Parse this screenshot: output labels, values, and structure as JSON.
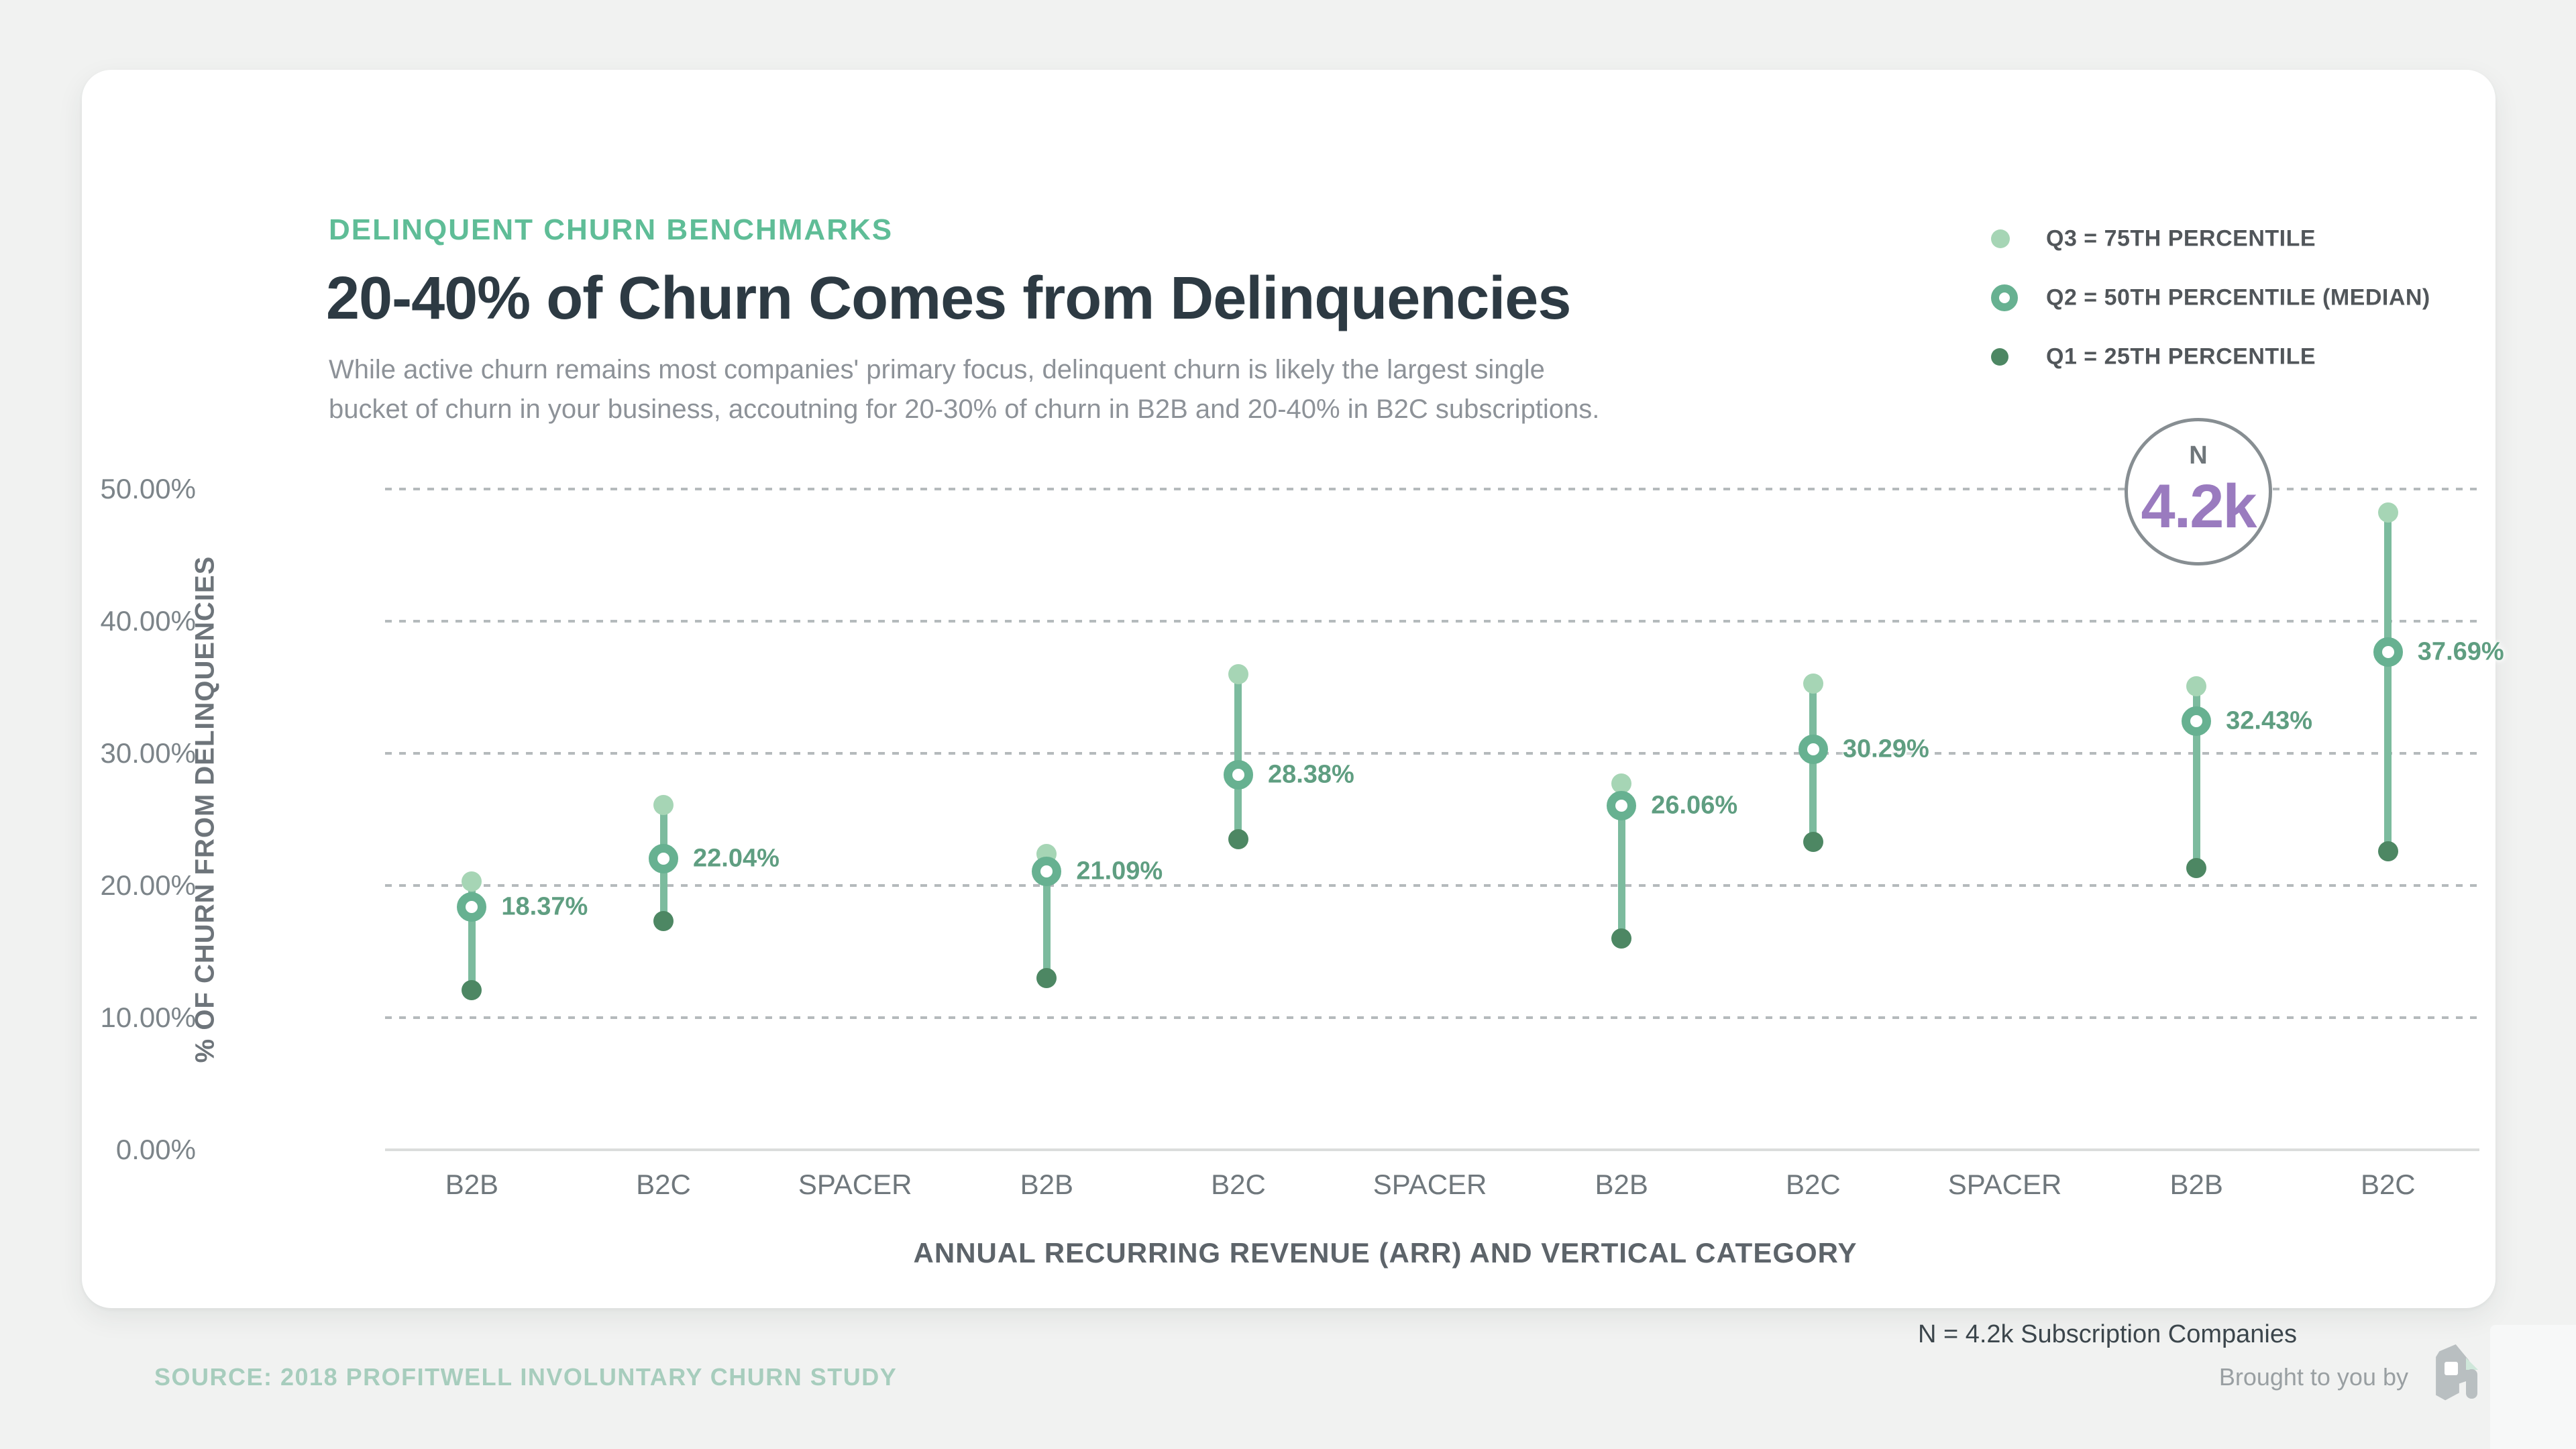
{
  "page": {
    "eyebrow": "DELINQUENT CHURN BENCHMARKS",
    "title": "20-40% of Churn Comes from Delinquencies",
    "subtitle_lines": [
      "While active churn remains most companies' primary focus, delinquent churn is likely the largest single",
      "bucket of churn in your business, accoutning for 20-30% of churn in B2B and 20-40% in B2C subscriptions."
    ],
    "sample_note": "N = 4.2k Subscription Companies",
    "footer": {
      "source": "SOURCE: 2018 PROFITWELL INVOLUNTARY CHURN STUDY",
      "brought_by": "Brought to you by",
      "logo": "profitwell-logo"
    }
  },
  "badge": {
    "label": "N",
    "value": "4.2k"
  },
  "legend": {
    "position": "top-right",
    "items": [
      {
        "label": "Q3 = 75TH PERCENTILE",
        "marker": "dot-light",
        "color": "#a6d5b5"
      },
      {
        "label": "Q2 = 50TH PERCENTILE (MEDIAN)",
        "marker": "ring",
        "color": "#67b191"
      },
      {
        "label": "Q1 = 25TH PERCENTILE",
        "marker": "dot-dark",
        "color": "#4d8763"
      }
    ]
  },
  "colors": {
    "q3_light_green": "#a6d5b5",
    "q2_ring_green": "#67b191",
    "stem_green": "#7cbb9e",
    "q1_dark_green": "#4d8763",
    "value_label_green": "#5f9e81",
    "eyebrow_green": "#5fbd97",
    "title_dark": "#2d3a43",
    "purple_badge_value": "#9a7bbf",
    "gridline_gray": "#b5babc",
    "page_background": "#f1f2f1",
    "card_background": "#ffffff"
  },
  "chart_data": {
    "type": "scatter",
    "variant": "percentile-range-lollipop",
    "title": "20-40% of Churn Comes from Delinquencies",
    "xlabel": "ANNUAL RECURRING REVENUE (ARR) AND VERTICAL CATEGORY",
    "ylabel": "% OF CHURN FROM DELINQUENCIES",
    "ylim": [
      0,
      50
    ],
    "grid": "horizontal-dashed",
    "legend_position": "top-right",
    "y_ticks": [
      {
        "label": "0.00%",
        "value": 0
      },
      {
        "label": "10.00%",
        "value": 10
      },
      {
        "label": "20.00%",
        "value": 20
      },
      {
        "label": "30.00%",
        "value": 30
      },
      {
        "label": "40.00%",
        "value": 40
      },
      {
        "label": "50.00%",
        "value": 50
      }
    ],
    "categories": [
      "B2B",
      "B2C",
      "SPACER",
      "B2B",
      "B2C",
      "SPACER",
      "B2B",
      "B2C",
      "SPACER",
      "B2B",
      "B2C"
    ],
    "series": [
      {
        "name": "Q3 = 75TH PERCENTILE",
        "values": [
          20.3,
          26.1,
          null,
          22.4,
          36.0,
          null,
          27.7,
          35.3,
          null,
          35.1,
          48.2
        ]
      },
      {
        "name": "Q2 = 50TH PERCENTILE (MEDIAN)",
        "values": [
          18.37,
          22.04,
          null,
          21.09,
          28.38,
          null,
          26.06,
          30.29,
          null,
          32.43,
          37.69
        ],
        "labels": [
          "18.37%",
          "22.04%",
          null,
          "21.09%",
          "28.38%",
          null,
          "26.06%",
          "30.29%",
          null,
          "32.43%",
          "37.69%"
        ]
      },
      {
        "name": "Q1 = 25TH PERCENTILE",
        "values": [
          12.1,
          17.3,
          null,
          13.0,
          23.5,
          null,
          16.0,
          23.3,
          null,
          21.3,
          22.6
        ]
      }
    ],
    "annotation": {
      "label": "N",
      "value": "4.2k",
      "note": "N = 4.2k Subscription Companies"
    }
  }
}
